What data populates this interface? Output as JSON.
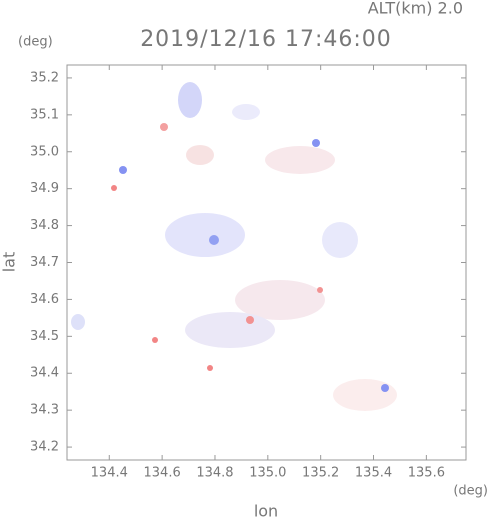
{
  "chart_data": {
    "type": "map",
    "title": "2019/12/16 17:46:00",
    "annotation": "ALT(km) 2.0",
    "y_unit": "(deg)",
    "x_unit": "(deg)",
    "xlabel": "lon",
    "ylabel": "lat",
    "xlim": [
      134.24,
      135.75
    ],
    "ylim": [
      34.165,
      35.235
    ],
    "xticks": [
      134.4,
      134.6,
      134.8,
      {
        "value": 135,
        "label": "135.0"
      },
      135.2,
      135.4,
      135.6
    ],
    "yticks": [
      34.2,
      34.3,
      34.4,
      34.5,
      34.6,
      34.7,
      34.8,
      34.9,
      {
        "value": 35,
        "label": "35.0"
      },
      35.1,
      35.2
    ]
  }
}
